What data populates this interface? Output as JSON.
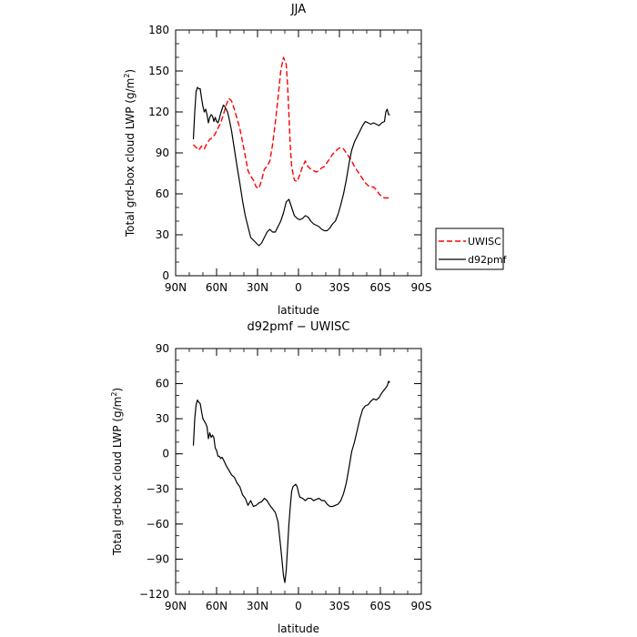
{
  "chart_data": [
    {
      "type": "line",
      "title": "JJA",
      "xlabel": "latitude",
      "ylabel_parts": [
        "Total grd-box cloud LWP (g/m",
        "2",
        ")"
      ],
      "xlim": [
        90,
        -90
      ],
      "ylim": [
        0,
        180
      ],
      "x_ticks": [
        90,
        60,
        30,
        0,
        -30,
        -60,
        -90
      ],
      "x_tick_labels": [
        "90N",
        "60N",
        "30N",
        "0",
        "30S",
        "60S",
        "90S"
      ],
      "y_ticks": [
        0,
        30,
        60,
        90,
        120,
        150,
        180
      ],
      "y_tick_labels": [
        "0",
        "30",
        "60",
        "90",
        "120",
        "150",
        "180"
      ],
      "legend": {
        "placement": "right",
        "entries": [
          "UWISC",
          "d92pmf"
        ]
      },
      "series": [
        {
          "name": "UWISC",
          "color": "#ff0000",
          "dash": "dashed",
          "x": [
            77,
            75,
            73,
            71,
            69,
            67,
            65,
            63,
            61,
            59,
            57,
            55,
            53,
            51,
            49,
            47,
            45,
            43,
            41,
            39,
            37,
            35,
            33,
            31,
            29,
            27,
            25,
            23,
            21,
            19,
            17,
            15,
            13,
            11,
            9,
            8,
            7,
            6,
            5,
            3,
            1,
            -1,
            -3,
            -5,
            -7,
            -9,
            -11,
            -13,
            -15,
            -17,
            -19,
            -21,
            -23,
            -25,
            -27,
            -29,
            -31,
            -33,
            -35,
            -37,
            -39,
            -41,
            -43,
            -45,
            -47,
            -49,
            -51,
            -53,
            -55,
            -57,
            -59,
            -61,
            -63,
            -65,
            -67
          ],
          "values": [
            96,
            94,
            92,
            95,
            93,
            97,
            100,
            101,
            104,
            108,
            112,
            118,
            125,
            130,
            128,
            122,
            115,
            108,
            98,
            88,
            77,
            73,
            70,
            65,
            64,
            70,
            78,
            80,
            84,
            96,
            112,
            130,
            150,
            160,
            155,
            140,
            118,
            95,
            80,
            70,
            69,
            74,
            80,
            84,
            80,
            78,
            77,
            76,
            77,
            79,
            80,
            83,
            86,
            89,
            91,
            93,
            94,
            93,
            90,
            87,
            84,
            80,
            77,
            74,
            71,
            68,
            66,
            65,
            65,
            63,
            60,
            58,
            57,
            57,
            57
          ]
        },
        {
          "name": "d92pmf",
          "color": "#000000",
          "dash": "solid",
          "x": [
            77,
            76,
            75,
            74,
            73,
            72,
            71,
            70,
            69,
            68,
            67,
            66,
            65,
            64,
            63,
            62,
            61,
            60,
            59,
            58,
            57,
            56,
            55,
            54,
            53,
            52,
            51,
            49,
            47,
            45,
            43,
            41,
            39,
            37,
            35,
            33,
            31,
            29,
            27,
            25,
            23,
            21,
            19,
            17,
            15,
            13,
            11,
            9,
            7,
            5,
            3,
            1,
            -1,
            -3,
            -5,
            -7,
            -9,
            -11,
            -13,
            -15,
            -17,
            -19,
            -21,
            -23,
            -25,
            -27,
            -29,
            -31,
            -33,
            -35,
            -37,
            -39,
            -41,
            -43,
            -45,
            -47,
            -49,
            -51,
            -53,
            -55,
            -57,
            -59,
            -61,
            -63,
            -64,
            -65,
            -66,
            -67
          ],
          "values": [
            100,
            120,
            135,
            138,
            137,
            137,
            130,
            124,
            120,
            122,
            118,
            112,
            116,
            118,
            117,
            113,
            116,
            113,
            112,
            115,
            119,
            122,
            125,
            124,
            122,
            120,
            116,
            106,
            93,
            80,
            68,
            55,
            44,
            36,
            28,
            26,
            24,
            22,
            24,
            28,
            32,
            34,
            32,
            32,
            36,
            40,
            46,
            54,
            56,
            50,
            44,
            42,
            41,
            42,
            44,
            43,
            40,
            38,
            37,
            36,
            34,
            33,
            33,
            35,
            38,
            40,
            45,
            52,
            60,
            70,
            82,
            92,
            98,
            102,
            106,
            110,
            113,
            112,
            111,
            112,
            111,
            110,
            112,
            113,
            120,
            122,
            118,
            118
          ]
        }
      ]
    },
    {
      "type": "line",
      "title": "d92pmf − UWISC",
      "xlabel": "latitude",
      "ylabel_parts": [
        "Total grd-box cloud LWP (g/m",
        "2",
        ")"
      ],
      "xlim": [
        90,
        -90
      ],
      "ylim": [
        -120,
        90
      ],
      "x_ticks": [
        90,
        60,
        30,
        0,
        -30,
        -60,
        -90
      ],
      "x_tick_labels": [
        "90N",
        "60N",
        "30N",
        "0",
        "30S",
        "60S",
        "90S"
      ],
      "y_ticks": [
        -120,
        -90,
        -60,
        -30,
        0,
        30,
        60,
        90
      ],
      "y_tick_labels": [
        "−120",
        "−90",
        "−60",
        "−30",
        "0",
        "30",
        "60",
        "90"
      ],
      "series": [
        {
          "color": "#000000",
          "dash": "solid",
          "x": [
            77,
            76,
            75,
            74,
            73,
            72,
            71,
            70,
            69,
            68,
            67,
            66,
            65,
            64,
            63,
            62,
            61,
            60,
            59,
            58,
            57,
            56,
            55,
            53,
            51,
            49,
            47,
            45,
            43,
            41,
            39,
            37,
            35,
            33,
            31,
            29,
            27,
            25,
            23,
            21,
            19,
            17,
            15,
            13,
            11,
            10,
            9,
            8,
            7,
            6,
            5,
            4,
            3,
            2,
            1,
            0,
            -1,
            -3,
            -5,
            -7,
            -9,
            -11,
            -13,
            -15,
            -17,
            -19,
            -21,
            -23,
            -25,
            -27,
            -29,
            -31,
            -33,
            -35,
            -37,
            -39,
            -41,
            -43,
            -45,
            -47,
            -49,
            -51,
            -53,
            -55,
            -57,
            -59,
            -61,
            -63,
            -65,
            -66,
            -67
          ],
          "values": [
            7,
            30,
            42,
            46,
            44,
            43,
            36,
            30,
            28,
            26,
            23,
            13,
            18,
            14,
            16,
            14,
            5,
            3,
            -2,
            -2,
            -4,
            -3,
            -5,
            -10,
            -14,
            -18,
            -20,
            -25,
            -28,
            -35,
            -38,
            -44,
            -40,
            -45,
            -44,
            -42,
            -41,
            -38,
            -40,
            -44,
            -47,
            -50,
            -58,
            -80,
            -104,
            -110,
            -100,
            -80,
            -60,
            -45,
            -32,
            -28,
            -27,
            -26,
            -28,
            -33,
            -37,
            -38,
            -40,
            -38,
            -38,
            -40,
            -39,
            -38,
            -40,
            -40,
            -43,
            -45,
            -45,
            -44,
            -43,
            -40,
            -34,
            -25,
            -12,
            2,
            10,
            20,
            30,
            38,
            41,
            42,
            45,
            47,
            46,
            48,
            52,
            55,
            58,
            62,
            61
          ]
        }
      ]
    }
  ]
}
